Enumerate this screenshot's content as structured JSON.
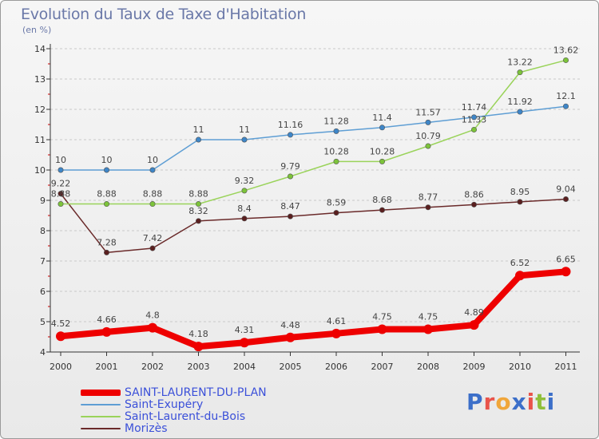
{
  "title": "Evolution du Taux de Taxe d'Habitation",
  "unit": "(en %)",
  "logo": "Proxiti",
  "colors": {
    "logo": [
      "#3c6fc9",
      "#e9534a",
      "#f0a63a",
      "#3c6fc9",
      "#e9534a",
      "#8fbf3a",
      "#3c6fc9"
    ]
  },
  "chart_data": {
    "type": "line",
    "title": "Evolution du Taux de Taxe d'Habitation",
    "ylabel": "(en %)",
    "xlabel": "",
    "categories": [
      "2000",
      "2001",
      "2002",
      "2003",
      "2004",
      "2005",
      "2006",
      "2007",
      "2008",
      "2009",
      "2010",
      "2011"
    ],
    "ylim": [
      4,
      14
    ],
    "yticks": [
      4,
      5,
      6,
      7,
      8,
      9,
      10,
      11,
      12,
      13,
      14
    ],
    "grid": "horizontal dashed",
    "legend": "bottom-left",
    "series": [
      {
        "name": "SAINT-LAURENT-DU-PLAN",
        "color": "#ee0000",
        "width": 8,
        "marker": "#ee0000",
        "values": [
          4.52,
          4.66,
          4.8,
          4.18,
          4.31,
          4.48,
          4.61,
          4.75,
          4.75,
          4.89,
          6.52,
          6.65
        ],
        "labels": [
          "4.52",
          "4.66",
          "4.8",
          "4.18",
          "4.31",
          "4.48",
          "4.61",
          "4.75",
          "4.75",
          "4.89",
          "6.52",
          "6.65"
        ]
      },
      {
        "name": "Saint-Exupéry",
        "color": "#5e9ed4",
        "width": 1.5,
        "marker": "#3e86c8",
        "values": [
          10,
          10,
          10,
          11,
          11,
          11.16,
          11.28,
          11.4,
          11.57,
          11.74,
          11.92,
          12.1
        ],
        "labels": [
          "10",
          "10",
          "10",
          "11",
          "11",
          "11.16",
          "11.28",
          "11.4",
          "11.57",
          "11.74",
          "11.92",
          "12.1"
        ]
      },
      {
        "name": "Saint-Laurent-du-Bois",
        "color": "#9ad35a",
        "width": 1.5,
        "marker": "#7cc33a",
        "values": [
          8.88,
          8.88,
          8.88,
          8.88,
          9.32,
          9.79,
          10.28,
          10.28,
          10.79,
          11.33,
          13.22,
          13.62
        ],
        "labels": [
          "8.88",
          "8.88",
          "8.88",
          "8.88",
          "9.32",
          "9.79",
          "10.28",
          "10.28",
          "10.79",
          "11.33",
          "13.22",
          "13.62"
        ]
      },
      {
        "name": "Morizès",
        "color": "#6a2a2a",
        "width": 1.5,
        "marker": "#5a1f1f",
        "values": [
          9.22,
          7.28,
          7.42,
          8.32,
          8.4,
          8.47,
          8.59,
          8.68,
          8.77,
          8.86,
          8.95,
          9.04
        ],
        "labels": [
          "9.22",
          "7.28",
          "7.42",
          "8.32",
          "8.4",
          "8.47",
          "8.59",
          "8.68",
          "8.77",
          "8.86",
          "8.95",
          "9.04"
        ]
      }
    ]
  }
}
